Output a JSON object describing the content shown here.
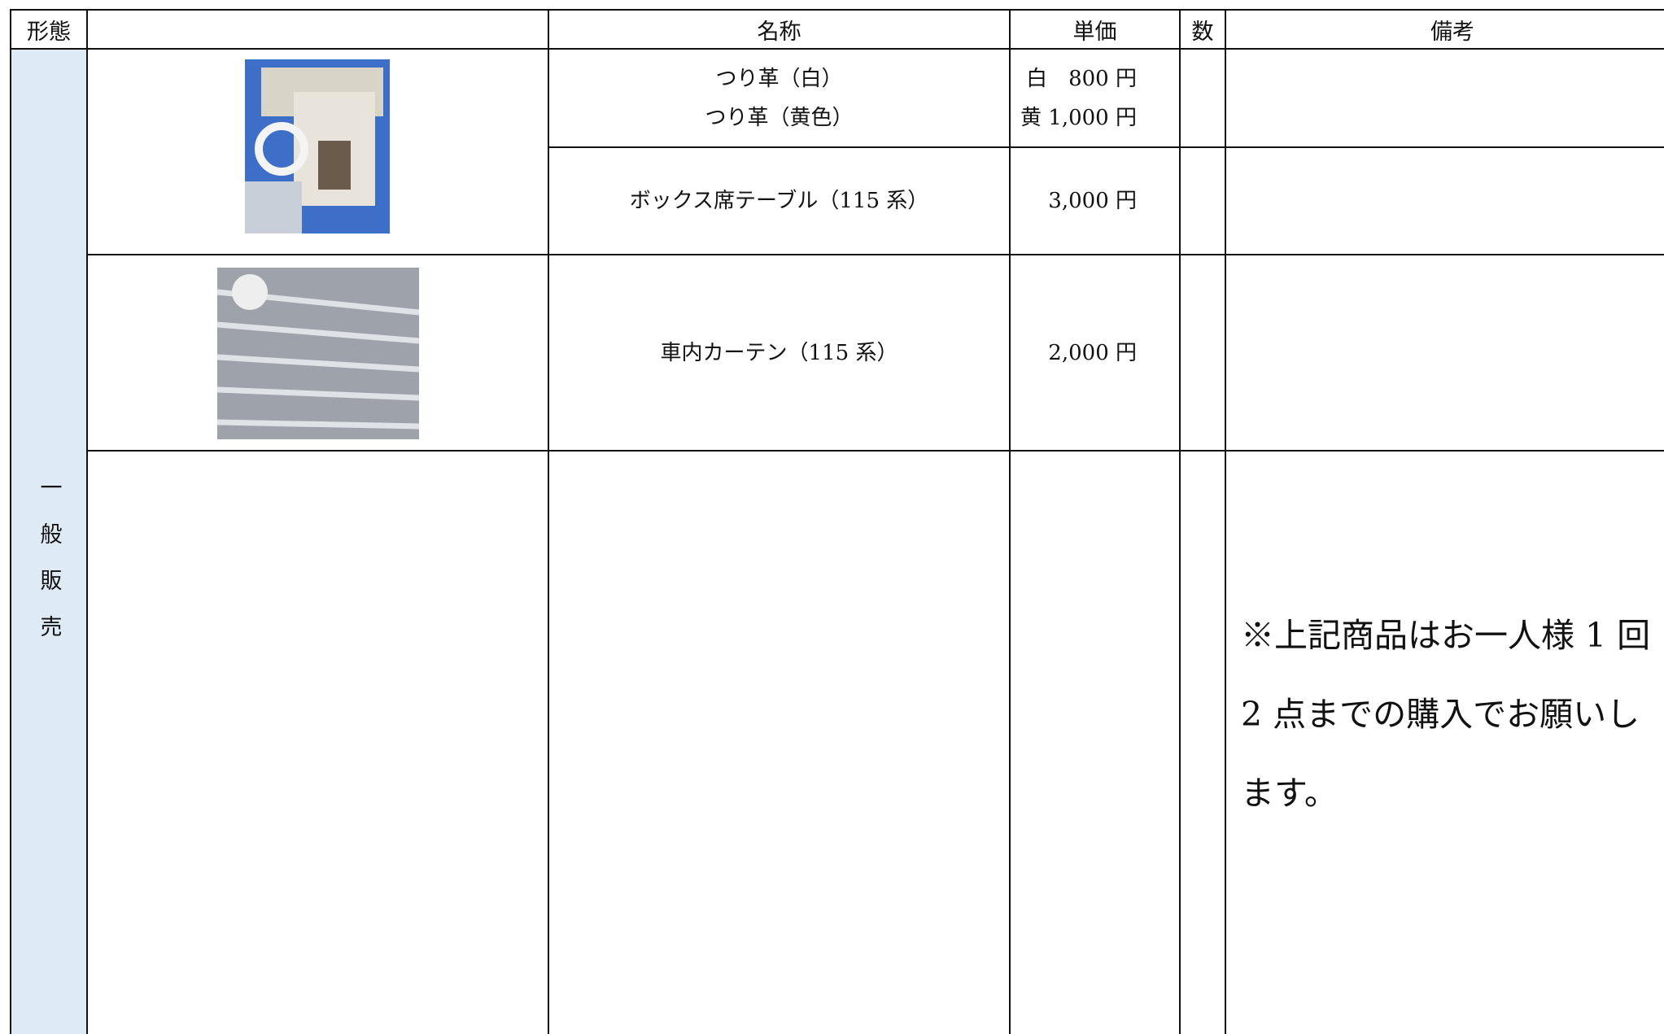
{
  "header": {
    "form": "形態",
    "name": "名称",
    "price": "単価",
    "qty": "数",
    "notes": "備考"
  },
  "category": "一般販売",
  "rows": [
    {
      "name_lines": [
        "つり革（白）",
        "つり革（黄色）"
      ],
      "price_lines": [
        "白　800 円",
        "黄 1,000 円"
      ]
    },
    {
      "name": "ボックス席テーブル（115 系）",
      "price": "3,000 円"
    },
    {
      "name": "車内カーテン（115 系）",
      "price": "2,000 円"
    }
  ],
  "note": "※上記商品はお一人様 1 回 2 点までの購入でお願いします。"
}
